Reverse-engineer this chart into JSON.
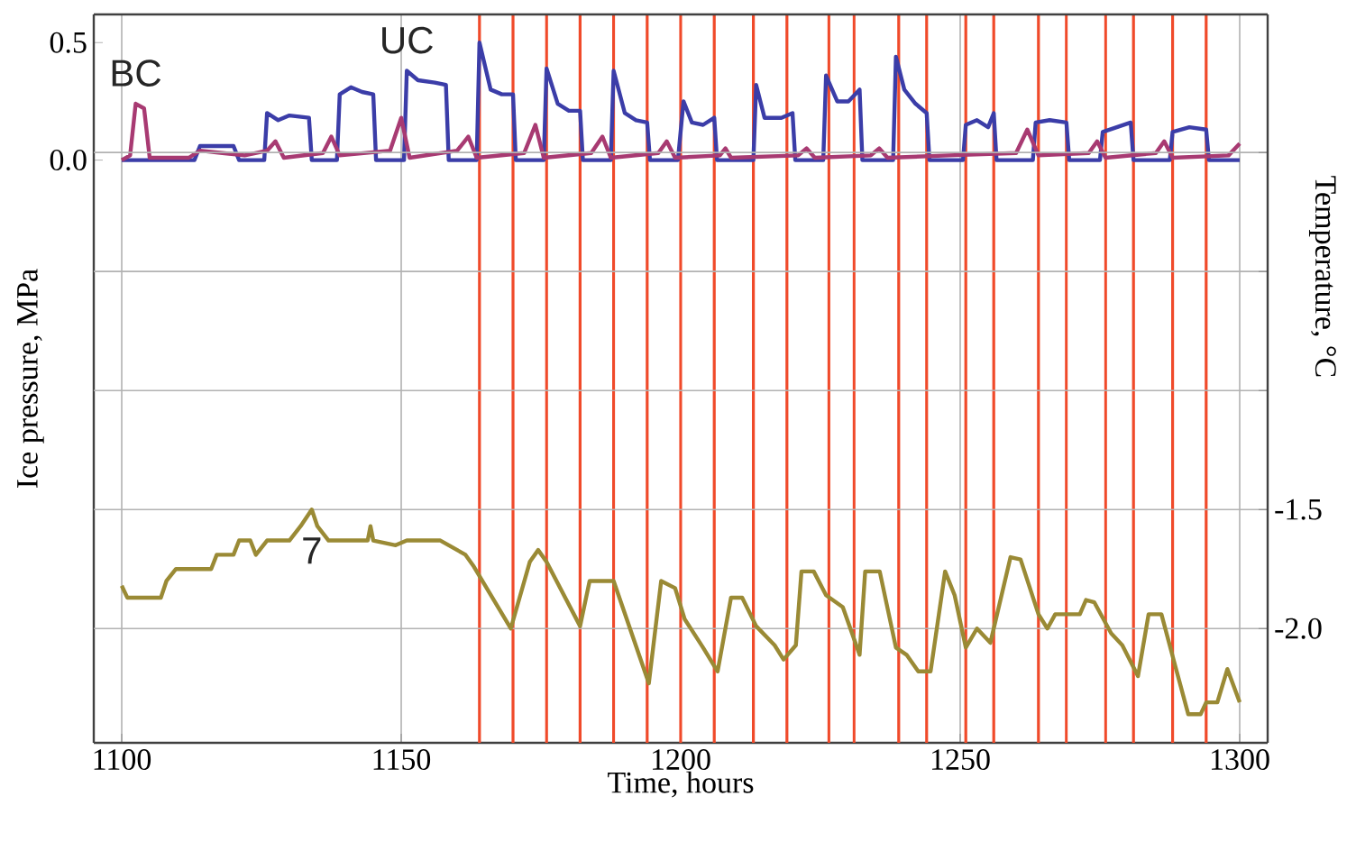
{
  "chart_data": {
    "type": "line",
    "xlabel": "Time, hours",
    "ylabel": "Ice pressure, MPa",
    "y2label": "Temperature, °C",
    "xlim": [
      1095,
      1305
    ],
    "xticks": [
      1100,
      1150,
      1200,
      1250,
      1300
    ],
    "ylim": [
      -2.48,
      0.62
    ],
    "yticks": [
      0.5,
      {
        "value": 0,
        "label": "0.0"
      }
    ],
    "y2lim": [
      -2.48,
      0.58
    ],
    "y2ticks": [
      {
        "value": 0,
        "label": null
      },
      {
        "value": -0.5,
        "label": null
      },
      {
        "value": -1,
        "label": null
      },
      -1.5,
      {
        "value": -2,
        "label": "-2.0"
      }
    ],
    "grid": true,
    "ref_lines": [
      {
        "axis": "x",
        "value": 1164,
        "color": "#f04a2a"
      },
      {
        "axis": "x",
        "value": 1170,
        "color": "#f04a2a"
      },
      {
        "axis": "x",
        "value": 1176,
        "color": "#f04a2a"
      },
      {
        "axis": "x",
        "value": 1182,
        "color": "#f04a2a"
      },
      {
        "axis": "x",
        "value": 1188,
        "color": "#f04a2a"
      },
      {
        "axis": "x",
        "value": 1194,
        "color": "#f04a2a"
      },
      {
        "axis": "x",
        "value": 1200,
        "color": "#f04a2a"
      },
      {
        "axis": "x",
        "value": 1206,
        "color": "#f04a2a"
      },
      {
        "axis": "x",
        "value": 1213,
        "color": "#f04a2a"
      },
      {
        "axis": "x",
        "value": 1219,
        "color": "#f04a2a"
      },
      {
        "axis": "x",
        "value": 1226.5,
        "color": "#f04a2a"
      },
      {
        "axis": "x",
        "value": 1231,
        "color": "#f04a2a"
      },
      {
        "axis": "x",
        "value": 1239,
        "color": "#f04a2a"
      },
      {
        "axis": "x",
        "value": 1244,
        "color": "#f04a2a"
      },
      {
        "axis": "x",
        "value": 1251,
        "color": "#f04a2a"
      },
      {
        "axis": "x",
        "value": 1256,
        "color": "#f04a2a"
      },
      {
        "axis": "x",
        "value": 1264,
        "color": "#f04a2a"
      },
      {
        "axis": "x",
        "value": 1269,
        "color": "#f04a2a"
      },
      {
        "axis": "x",
        "value": 1276,
        "color": "#f04a2a"
      },
      {
        "axis": "x",
        "value": 1281,
        "color": "#f04a2a"
      },
      {
        "axis": "x",
        "value": 1288,
        "color": "#f04a2a"
      },
      {
        "axis": "x",
        "value": 1294,
        "color": "#f04a2a"
      }
    ],
    "series": [
      {
        "name": "UC",
        "color": "#3b3da8",
        "x": [
          1100,
          1113,
          1114,
          1120,
          1121,
          1125.5,
          1126,
          1128,
          1130,
          1133.5,
          1134,
          1138.5,
          1139,
          1141,
          1143,
          1145,
          1145.5,
          1150.5,
          1151,
          1153,
          1156,
          1158,
          1158.5,
          1163.5,
          1164,
          1166,
          1168,
          1170,
          1170.5,
          1175.5,
          1176,
          1178,
          1180,
          1182,
          1182.5,
          1187.5,
          1188,
          1190,
          1192,
          1194,
          1194.5,
          1199.5,
          1200.5,
          1202,
          1204,
          1206,
          1206.5,
          1213,
          1213.5,
          1215,
          1218,
          1220,
          1220.5,
          1225.5,
          1226,
          1228,
          1230,
          1232,
          1232.5,
          1238,
          1238.5,
          1240,
          1242,
          1244,
          1244.5,
          1250.5,
          1251,
          1253,
          1255,
          1256,
          1256.5,
          1263,
          1263.5,
          1266,
          1269,
          1269.5,
          1275,
          1275.5,
          1278,
          1280.5,
          1281,
          1287.5,
          1288,
          1291,
          1294,
          1294.5,
          1300
        ],
        "values": [
          0,
          0,
          0.06,
          0.06,
          0,
          0,
          0.2,
          0.17,
          0.19,
          0.18,
          0,
          0,
          0.28,
          0.31,
          0.29,
          0.28,
          0,
          0,
          0.38,
          0.34,
          0.33,
          0.32,
          0,
          0,
          0.5,
          0.3,
          0.28,
          0.28,
          0,
          0,
          0.39,
          0.24,
          0.21,
          0.21,
          0,
          0,
          0.38,
          0.2,
          0.17,
          0.16,
          0,
          0,
          0.25,
          0.16,
          0.15,
          0.18,
          0,
          0,
          0.32,
          0.18,
          0.18,
          0.2,
          0,
          0,
          0.36,
          0.25,
          0.25,
          0.3,
          0,
          0,
          0.44,
          0.3,
          0.24,
          0.2,
          0,
          0,
          0.15,
          0.17,
          0.14,
          0.2,
          0,
          0,
          0.16,
          0.17,
          0.16,
          0,
          0,
          0.12,
          0.14,
          0.16,
          0,
          0,
          0.12,
          0.14,
          0.13,
          0,
          0
        ]
      },
      {
        "name": "BC",
        "color": "#a83a72",
        "x": [
          1100,
          1101.5,
          1102.5,
          1104,
          1105,
          1112,
          1114,
          1118,
          1122,
          1126,
          1127.5,
          1129,
          1136,
          1137.5,
          1139,
          1148,
          1150,
          1151.5,
          1160,
          1162,
          1163.5,
          1172,
          1174,
          1175.5,
          1184,
          1186,
          1187.5,
          1196,
          1197.5,
          1199,
          1207,
          1208,
          1209,
          1221,
          1222.5,
          1224,
          1234,
          1235.5,
          1237,
          1248,
          1260,
          1262,
          1264,
          1273,
          1274.5,
          1276,
          1285,
          1286.5,
          1288,
          1298,
          1300
        ],
        "values": [
          0,
          0.02,
          0.24,
          0.22,
          0.01,
          0.01,
          0.04,
          0.03,
          0.02,
          0.04,
          0.08,
          0.01,
          0.03,
          0.1,
          0.02,
          0.04,
          0.18,
          0.01,
          0.04,
          0.1,
          0.01,
          0.03,
          0.15,
          0.01,
          0.03,
          0.1,
          0.01,
          0.03,
          0.08,
          0.01,
          0.02,
          0.05,
          0.01,
          0.02,
          0.05,
          0.01,
          0.02,
          0.05,
          0.01,
          0.02,
          0.03,
          0.13,
          0.02,
          0.03,
          0.08,
          0.01,
          0.03,
          0.08,
          0.01,
          0.02,
          0.07
        ]
      },
      {
        "name": "7",
        "color": "#9a8a35",
        "axis": "y2",
        "x": [
          1100,
          1101,
          1107,
          1108,
          1109.7,
          1116,
          1117,
          1120,
          1121,
          1123,
          1124,
          1126,
          1130,
          1132,
          1134,
          1135,
          1137,
          1144,
          1144.5,
          1145,
          1149,
          1151,
          1157,
          1161.5,
          1163,
          1169.6,
          1173,
          1174.5,
          1176,
          1182,
          1183.7,
          1188,
          1194.3,
          1196.5,
          1199,
          1200.7,
          1204,
          1206.6,
          1209,
          1211,
          1213.5,
          1216.8,
          1218.4,
          1220.6,
          1221.6,
          1223.8,
          1226,
          1229,
          1232,
          1233,
          1235.6,
          1238.5,
          1240.4,
          1242.5,
          1244.7,
          1247.3,
          1249,
          1251,
          1253,
          1255.4,
          1259,
          1260.8,
          1264,
          1265.6,
          1267,
          1271.4,
          1272.5,
          1274,
          1277,
          1279,
          1281.8,
          1283.7,
          1286,
          1288.5,
          1290.8,
          1293,
          1294,
          1296,
          1297.8,
          1300
        ],
        "values": [
          -1.82,
          -1.87,
          -1.87,
          -1.8,
          -1.75,
          -1.75,
          -1.69,
          -1.69,
          -1.63,
          -1.63,
          -1.69,
          -1.63,
          -1.63,
          -1.57,
          -1.5,
          -1.57,
          -1.63,
          -1.63,
          -1.57,
          -1.63,
          -1.65,
          -1.63,
          -1.63,
          -1.69,
          -1.74,
          -2.0,
          -1.72,
          -1.67,
          -1.72,
          -1.99,
          -1.8,
          -1.8,
          -2.23,
          -1.8,
          -1.83,
          -1.96,
          -2.08,
          -2.18,
          -1.87,
          -1.87,
          -1.99,
          -2.07,
          -2.13,
          -2.07,
          -1.76,
          -1.76,
          -1.86,
          -1.91,
          -2.11,
          -1.76,
          -1.76,
          -2.08,
          -2.11,
          -2.18,
          -2.18,
          -1.76,
          -1.86,
          -2.08,
          -2.0,
          -2.06,
          -1.7,
          -1.71,
          -1.94,
          -2.0,
          -1.94,
          -1.94,
          -1.88,
          -1.89,
          -2.02,
          -2.07,
          -2.2,
          -1.94,
          -1.94,
          -2.16,
          -2.36,
          -2.36,
          -2.31,
          -2.31,
          -2.17,
          -2.31
        ]
      }
    ]
  }
}
